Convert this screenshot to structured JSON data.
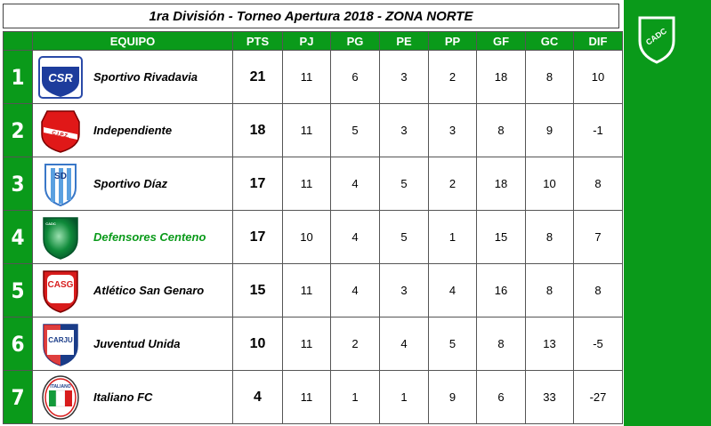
{
  "title": "1ra División - Torneo Apertura 2018 - ZONA NORTE",
  "colors": {
    "green": "#0a9a1a",
    "highlight_team": "#0a9a1a"
  },
  "side_logo": {
    "icon": "club-shield-icon",
    "text": "CADC"
  },
  "columns": [
    "EQUIPO",
    "PTS",
    "PJ",
    "PG",
    "PE",
    "PP",
    "GF",
    "GC",
    "DIF"
  ],
  "rows": [
    {
      "pos": "1",
      "team": "Sportivo Rivadavia",
      "crest": "crest-csr",
      "crest_text": "CSR",
      "pts": "21",
      "pj": "11",
      "pg": "6",
      "pe": "3",
      "pp": "2",
      "gf": "18",
      "gc": "8",
      "dif": "10"
    },
    {
      "pos": "2",
      "team": "Independiente",
      "crest": "crest-independiente",
      "crest_text": "C.I.P.Z.",
      "pts": "18",
      "pj": "11",
      "pg": "5",
      "pe": "3",
      "pp": "3",
      "gf": "8",
      "gc": "9",
      "dif": "-1"
    },
    {
      "pos": "3",
      "team": "Sportivo Díaz",
      "crest": "crest-sd",
      "crest_text": "SD",
      "pts": "17",
      "pj": "11",
      "pg": "4",
      "pe": "5",
      "pp": "2",
      "gf": "18",
      "gc": "10",
      "dif": "8"
    },
    {
      "pos": "4",
      "team": "Defensores Centeno",
      "crest": "crest-cadc",
      "crest_text": "CADC",
      "pts": "17",
      "pj": "10",
      "pg": "4",
      "pe": "5",
      "pp": "1",
      "gf": "15",
      "gc": "8",
      "dif": "7"
    },
    {
      "pos": "5",
      "team": "Atlético San Genaro",
      "crest": "crest-casg",
      "crest_text": "CASG",
      "pts": "15",
      "pj": "11",
      "pg": "4",
      "pe": "3",
      "pp": "4",
      "gf": "16",
      "gc": "8",
      "dif": "8"
    },
    {
      "pos": "6",
      "team": "Juventud Unida",
      "crest": "crest-carju",
      "crest_text": "CARJU",
      "pts": "10",
      "pj": "11",
      "pg": "2",
      "pe": "4",
      "pp": "5",
      "gf": "8",
      "gc": "13",
      "dif": "-5"
    },
    {
      "pos": "7",
      "team": "Italiano FC",
      "crest": "crest-italiano",
      "crest_text": "ITALIANO",
      "pts": "4",
      "pj": "11",
      "pg": "1",
      "pe": "1",
      "pp": "9",
      "gf": "6",
      "gc": "33",
      "dif": "-27"
    }
  ]
}
